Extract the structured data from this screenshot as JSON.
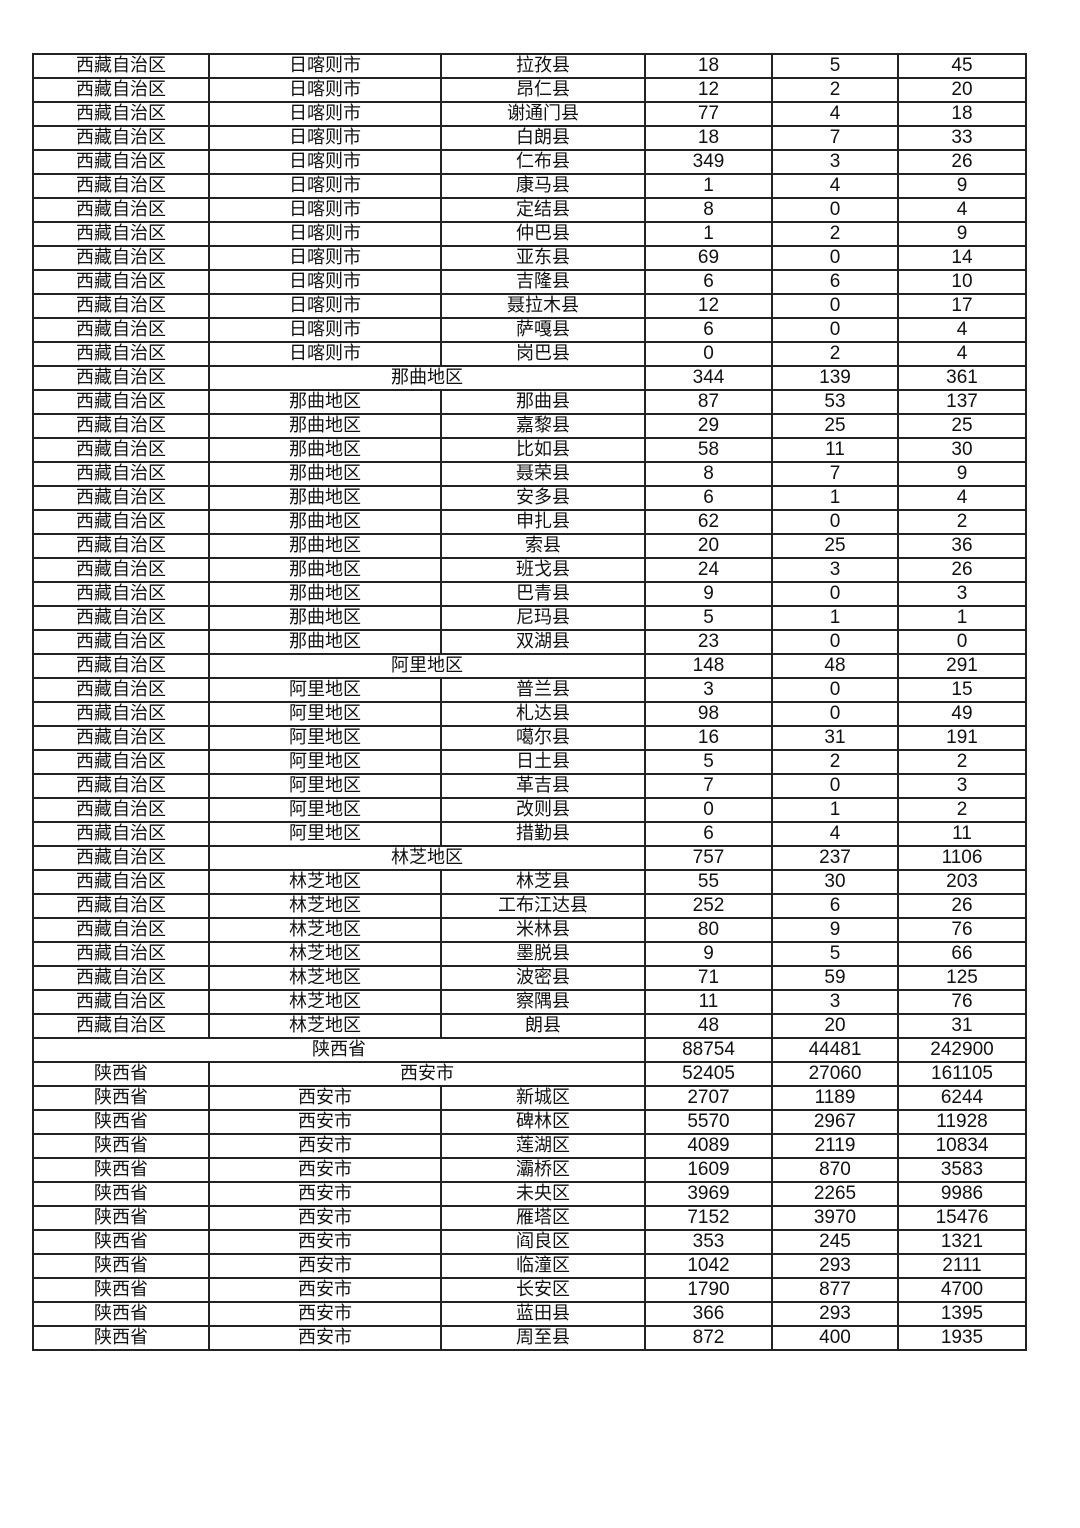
{
  "table": {
    "rows": [
      {
        "type": "county",
        "cells": [
          "西藏自治区",
          "日喀则市",
          "拉孜县",
          "18",
          "5",
          "45"
        ]
      },
      {
        "type": "county",
        "cells": [
          "西藏自治区",
          "日喀则市",
          "昂仁县",
          "12",
          "2",
          "20"
        ]
      },
      {
        "type": "county",
        "cells": [
          "西藏自治区",
          "日喀则市",
          "谢通门县",
          "77",
          "4",
          "18"
        ]
      },
      {
        "type": "county",
        "cells": [
          "西藏自治区",
          "日喀则市",
          "白朗县",
          "18",
          "7",
          "33"
        ]
      },
      {
        "type": "county",
        "cells": [
          "西藏自治区",
          "日喀则市",
          "仁布县",
          "349",
          "3",
          "26"
        ]
      },
      {
        "type": "county",
        "cells": [
          "西藏自治区",
          "日喀则市",
          "康马县",
          "1",
          "4",
          "9"
        ]
      },
      {
        "type": "county",
        "cells": [
          "西藏自治区",
          "日喀则市",
          "定结县",
          "8",
          "0",
          "4"
        ]
      },
      {
        "type": "county",
        "cells": [
          "西藏自治区",
          "日喀则市",
          "仲巴县",
          "1",
          "2",
          "9"
        ]
      },
      {
        "type": "county",
        "cells": [
          "西藏自治区",
          "日喀则市",
          "亚东县",
          "69",
          "0",
          "14"
        ]
      },
      {
        "type": "county",
        "cells": [
          "西藏自治区",
          "日喀则市",
          "吉隆县",
          "6",
          "6",
          "10"
        ]
      },
      {
        "type": "county",
        "cells": [
          "西藏自治区",
          "日喀则市",
          "聂拉木县",
          "12",
          "0",
          "17"
        ]
      },
      {
        "type": "county",
        "cells": [
          "西藏自治区",
          "日喀则市",
          "萨嘎县",
          "6",
          "0",
          "4"
        ]
      },
      {
        "type": "county",
        "cells": [
          "西藏自治区",
          "日喀则市",
          "岗巴县",
          "0",
          "2",
          "4"
        ]
      },
      {
        "type": "city",
        "cells": [
          "西藏自治区",
          "那曲地区",
          "344",
          "139",
          "361"
        ]
      },
      {
        "type": "county",
        "cells": [
          "西藏自治区",
          "那曲地区",
          "那曲县",
          "87",
          "53",
          "137"
        ]
      },
      {
        "type": "county",
        "cells": [
          "西藏自治区",
          "那曲地区",
          "嘉黎县",
          "29",
          "25",
          "25"
        ]
      },
      {
        "type": "county",
        "cells": [
          "西藏自治区",
          "那曲地区",
          "比如县",
          "58",
          "11",
          "30"
        ]
      },
      {
        "type": "county",
        "cells": [
          "西藏自治区",
          "那曲地区",
          "聂荣县",
          "8",
          "7",
          "9"
        ]
      },
      {
        "type": "county",
        "cells": [
          "西藏自治区",
          "那曲地区",
          "安多县",
          "6",
          "1",
          "4"
        ]
      },
      {
        "type": "county",
        "cells": [
          "西藏自治区",
          "那曲地区",
          "申扎县",
          "62",
          "0",
          "2"
        ]
      },
      {
        "type": "county",
        "cells": [
          "西藏自治区",
          "那曲地区",
          "索县",
          "20",
          "25",
          "36"
        ]
      },
      {
        "type": "county",
        "cells": [
          "西藏自治区",
          "那曲地区",
          "班戈县",
          "24",
          "3",
          "26"
        ]
      },
      {
        "type": "county",
        "cells": [
          "西藏自治区",
          "那曲地区",
          "巴青县",
          "9",
          "0",
          "3"
        ]
      },
      {
        "type": "county",
        "cells": [
          "西藏自治区",
          "那曲地区",
          "尼玛县",
          "5",
          "1",
          "1"
        ]
      },
      {
        "type": "county",
        "cells": [
          "西藏自治区",
          "那曲地区",
          "双湖县",
          "23",
          "0",
          "0"
        ]
      },
      {
        "type": "city",
        "cells": [
          "西藏自治区",
          "阿里地区",
          "148",
          "48",
          "291"
        ]
      },
      {
        "type": "county",
        "cells": [
          "西藏自治区",
          "阿里地区",
          "普兰县",
          "3",
          "0",
          "15"
        ]
      },
      {
        "type": "county",
        "cells": [
          "西藏自治区",
          "阿里地区",
          "札达县",
          "98",
          "0",
          "49"
        ]
      },
      {
        "type": "county",
        "cells": [
          "西藏自治区",
          "阿里地区",
          "噶尔县",
          "16",
          "31",
          "191"
        ]
      },
      {
        "type": "county",
        "cells": [
          "西藏自治区",
          "阿里地区",
          "日土县",
          "5",
          "2",
          "2"
        ]
      },
      {
        "type": "county",
        "cells": [
          "西藏自治区",
          "阿里地区",
          "革吉县",
          "7",
          "0",
          "3"
        ]
      },
      {
        "type": "county",
        "cells": [
          "西藏自治区",
          "阿里地区",
          "改则县",
          "0",
          "1",
          "2"
        ]
      },
      {
        "type": "county",
        "cells": [
          "西藏自治区",
          "阿里地区",
          "措勤县",
          "6",
          "4",
          "11"
        ]
      },
      {
        "type": "city",
        "cells": [
          "西藏自治区",
          "林芝地区",
          "757",
          "237",
          "1106"
        ]
      },
      {
        "type": "county",
        "cells": [
          "西藏自治区",
          "林芝地区",
          "林芝县",
          "55",
          "30",
          "203"
        ]
      },
      {
        "type": "county",
        "cells": [
          "西藏自治区",
          "林芝地区",
          "工布江达县",
          "252",
          "6",
          "26"
        ]
      },
      {
        "type": "county",
        "cells": [
          "西藏自治区",
          "林芝地区",
          "米林县",
          "80",
          "9",
          "76"
        ]
      },
      {
        "type": "county",
        "cells": [
          "西藏自治区",
          "林芝地区",
          "墨脱县",
          "9",
          "5",
          "66"
        ]
      },
      {
        "type": "county",
        "cells": [
          "西藏自治区",
          "林芝地区",
          "波密县",
          "71",
          "59",
          "125"
        ]
      },
      {
        "type": "county",
        "cells": [
          "西藏自治区",
          "林芝地区",
          "察隅县",
          "11",
          "3",
          "76"
        ]
      },
      {
        "type": "county",
        "cells": [
          "西藏自治区",
          "林芝地区",
          "朗县",
          "48",
          "20",
          "31"
        ]
      },
      {
        "type": "province",
        "cells": [
          "陕西省",
          "88754",
          "44481",
          "242900"
        ]
      },
      {
        "type": "city",
        "cells": [
          "陕西省",
          "西安市",
          "52405",
          "27060",
          "161105"
        ]
      },
      {
        "type": "county",
        "cells": [
          "陕西省",
          "西安市",
          "新城区",
          "2707",
          "1189",
          "6244"
        ]
      },
      {
        "type": "county",
        "cells": [
          "陕西省",
          "西安市",
          "碑林区",
          "5570",
          "2967",
          "11928"
        ]
      },
      {
        "type": "county",
        "cells": [
          "陕西省",
          "西安市",
          "莲湖区",
          "4089",
          "2119",
          "10834"
        ]
      },
      {
        "type": "county",
        "cells": [
          "陕西省",
          "西安市",
          "灞桥区",
          "1609",
          "870",
          "3583"
        ]
      },
      {
        "type": "county",
        "cells": [
          "陕西省",
          "西安市",
          "未央区",
          "3969",
          "2265",
          "9986"
        ]
      },
      {
        "type": "county",
        "cells": [
          "陕西省",
          "西安市",
          "雁塔区",
          "7152",
          "3970",
          "15476"
        ]
      },
      {
        "type": "county",
        "cells": [
          "陕西省",
          "西安市",
          "阎良区",
          "353",
          "245",
          "1321"
        ]
      },
      {
        "type": "county",
        "cells": [
          "陕西省",
          "西安市",
          "临潼区",
          "1042",
          "293",
          "2111"
        ]
      },
      {
        "type": "county",
        "cells": [
          "陕西省",
          "西安市",
          "长安区",
          "1790",
          "877",
          "4700"
        ]
      },
      {
        "type": "county",
        "cells": [
          "陕西省",
          "西安市",
          "蓝田县",
          "366",
          "293",
          "1395"
        ]
      },
      {
        "type": "county",
        "cells": [
          "陕西省",
          "西安市",
          "周至县",
          "872",
          "400",
          "1935"
        ]
      }
    ]
  }
}
